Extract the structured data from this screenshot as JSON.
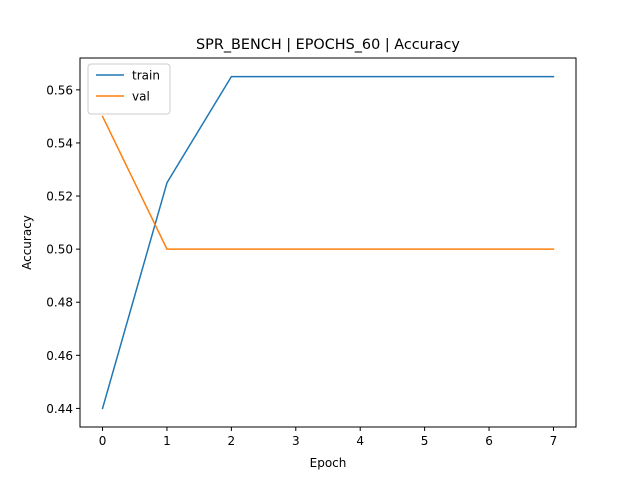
{
  "chart_data": {
    "type": "line",
    "title": "SPR_BENCH | EPOCHS_60 | Accuracy",
    "xlabel": "Epoch",
    "ylabel": "Accuracy",
    "x": [
      0,
      1,
      2,
      3,
      4,
      5,
      6,
      7
    ],
    "xlim": [
      -0.35,
      7.35
    ],
    "ylim": [
      0.433,
      0.572
    ],
    "xticks": [
      0,
      1,
      2,
      3,
      4,
      5,
      6,
      7
    ],
    "yticks": [
      0.44,
      0.46,
      0.48,
      0.5,
      0.52,
      0.54,
      0.56
    ],
    "ytick_labels": [
      "0.44",
      "0.46",
      "0.48",
      "0.50",
      "0.52",
      "0.54",
      "0.56"
    ],
    "grid": false,
    "legend_position": "top-left",
    "series": [
      {
        "name": "train",
        "color": "#1f77b4",
        "values": [
          0.44,
          0.525,
          0.565,
          0.565,
          0.565,
          0.565,
          0.565,
          0.565
        ]
      },
      {
        "name": "val",
        "color": "#ff7f0e",
        "values": [
          0.55,
          0.5,
          0.5,
          0.5,
          0.5,
          0.5,
          0.5,
          0.5
        ]
      }
    ]
  }
}
